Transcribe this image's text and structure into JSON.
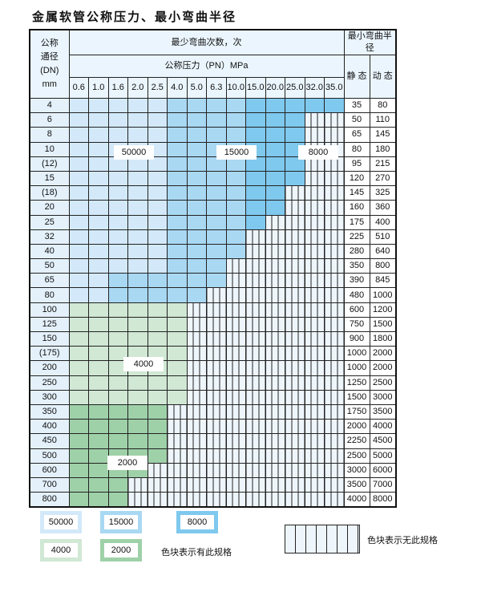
{
  "title": "金属软管公称压力、最小弯曲半径",
  "header": {
    "dn_label": [
      "公称",
      "通径",
      "(DN)",
      "mm"
    ],
    "cycles": "最少弯曲次数，次",
    "pressure": "公称压力（PN）MPa",
    "radius": "最小弯曲半径",
    "static": "静 态",
    "dynamic": "动 态"
  },
  "pressures": [
    "0.6",
    "1.0",
    "1.6",
    "2.0",
    "2.5",
    "4.0",
    "5.0",
    "6.3",
    "10.0",
    "15.0",
    "20.0",
    "25.0",
    "32.0",
    "35.0"
  ],
  "legend_codes": {
    "L": "50000",
    "M": "15000",
    "D": "8000",
    "G": "4000",
    "H": "2000",
    "E": "无此规格"
  },
  "colors": {
    "L": "#d3e9f9",
    "M": "#a9d8f3",
    "D": "#7fc8ee",
    "G": "#d0e8d4",
    "H": "#9fd1a9"
  },
  "rows": [
    {
      "dn": "4",
      "s": "35",
      "d": "80",
      "cells": "LLLLLMMMMDDDDD"
    },
    {
      "dn": "6",
      "s": "50",
      "d": "110",
      "cells": "LLLLLMMMMDDDEE"
    },
    {
      "dn": "8",
      "s": "65",
      "d": "145",
      "cells": "LLLLLMMMMDDDEE"
    },
    {
      "dn": "10",
      "s": "80",
      "d": "180",
      "cells": "LLLLLMMMMDDDEE"
    },
    {
      "dn": "(12)",
      "s": "95",
      "d": "215",
      "cells": "LLLLLMMMMDDDEE"
    },
    {
      "dn": "15",
      "s": "120",
      "d": "270",
      "cells": "LLLLLMMMMDDDEE"
    },
    {
      "dn": "(18)",
      "s": "145",
      "d": "325",
      "cells": "LLLLLMMMMDDEEE"
    },
    {
      "dn": "20",
      "s": "160",
      "d": "360",
      "cells": "LLLLLMMMMDDEEE"
    },
    {
      "dn": "25",
      "s": "175",
      "d": "400",
      "cells": "LLLLLMMMMDEEEE"
    },
    {
      "dn": "32",
      "s": "225",
      "d": "510",
      "cells": "LLLLLMMMMEEEEE"
    },
    {
      "dn": "40",
      "s": "280",
      "d": "640",
      "cells": "LLLLLMMMMEEEEE"
    },
    {
      "dn": "50",
      "s": "350",
      "d": "800",
      "cells": "LLLLLMMMEEEEEE"
    },
    {
      "dn": "65",
      "s": "390",
      "d": "845",
      "cells": "LLMMMMMMEEEEEE"
    },
    {
      "dn": "80",
      "s": "480",
      "d": "1000",
      "cells": "LLMMMMMEEEEEEE"
    },
    {
      "dn": "100",
      "s": "600",
      "d": "1200",
      "cells": "GGGGGGEEEEEEEE"
    },
    {
      "dn": "125",
      "s": "750",
      "d": "1500",
      "cells": "GGGGGGEEEEEEEE"
    },
    {
      "dn": "150",
      "s": "900",
      "d": "1800",
      "cells": "GGGGGGEEEEEEEE"
    },
    {
      "dn": "(175)",
      "s": "1000",
      "d": "2000",
      "cells": "GGGGGGEEEEEEEE"
    },
    {
      "dn": "200",
      "s": "1000",
      "d": "2000",
      "cells": "GGGGGGEEEEEEEE"
    },
    {
      "dn": "250",
      "s": "1250",
      "d": "2500",
      "cells": "GGGGGGEEEEEEEE"
    },
    {
      "dn": "300",
      "s": "1500",
      "d": "3000",
      "cells": "GGGGGGEEEEEEEE"
    },
    {
      "dn": "350",
      "s": "1750",
      "d": "3500",
      "cells": "HHHHHEEEEEEEEE"
    },
    {
      "dn": "400",
      "s": "2000",
      "d": "4000",
      "cells": "HHHHHEEEEEEEEE"
    },
    {
      "dn": "450",
      "s": "2250",
      "d": "4500",
      "cells": "HHHHHEEEEEEEEE"
    },
    {
      "dn": "500",
      "s": "2500",
      "d": "5000",
      "cells": "HHHHHEEEEEEEEE"
    },
    {
      "dn": "600",
      "s": "3000",
      "d": "6000",
      "cells": "HHHHEEEEEEEEEE"
    },
    {
      "dn": "700",
      "s": "3500",
      "d": "7000",
      "cells": "HHHEEEEEEEEEEE"
    },
    {
      "dn": "800",
      "s": "4000",
      "d": "8000",
      "cells": "HHHEEEEEEEEEEE"
    }
  ],
  "overlays": {
    "l": "50000",
    "m": "15000",
    "d": "8000",
    "g": "4000",
    "h": "2000"
  },
  "legend": {
    "l": "50000",
    "m": "15000",
    "d": "8000",
    "g": "4000",
    "h": "2000",
    "has_text": "色块表示有此规格",
    "none_text": "色块表示无此规格"
  }
}
